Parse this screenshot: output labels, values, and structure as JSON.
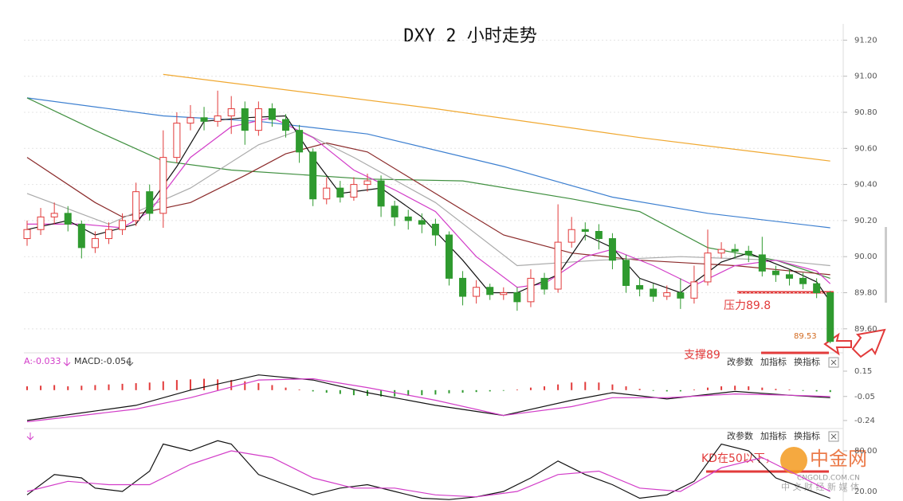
{
  "chart_data": [
    {
      "type": "candlestick",
      "title": "DXY 2 小时走势",
      "up_color": "#e23b3b",
      "down_color": "#2f9a2f",
      "grid": true,
      "ylim": [
        89.48,
        91.29
      ],
      "yticks": [
        {
          "value": 89.6,
          "label": "89.60"
        },
        {
          "value": 89.8,
          "label": "89.80"
        },
        {
          "value": 90.0,
          "label": "90.00"
        },
        {
          "value": 90.2,
          "label": "90.20"
        },
        {
          "value": 90.4,
          "label": "90.40"
        },
        {
          "value": 90.6,
          "label": "90.60"
        },
        {
          "value": 90.8,
          "label": "90.80"
        },
        {
          "value": 91.0,
          "label": "91.00"
        },
        {
          "value": 91.2,
          "label": "91.20"
        }
      ],
      "open": [
        90.1,
        90.15,
        90.22,
        90.24,
        90.18,
        90.05,
        90.1,
        90.15,
        90.2,
        90.36,
        90.24,
        90.55,
        90.74,
        90.77,
        90.75,
        90.78,
        90.82,
        90.7,
        90.82,
        90.76,
        90.7,
        90.58,
        90.32,
        90.38,
        90.33,
        90.4,
        90.42,
        90.28,
        90.22,
        90.2,
        90.18,
        90.12,
        89.88,
        89.78,
        89.83,
        89.79,
        89.8,
        89.75,
        89.88,
        89.82,
        90.08,
        90.15,
        90.14,
        90.1,
        89.98,
        89.84,
        89.82,
        89.78,
        89.8,
        89.77,
        89.86,
        90.02,
        90.04,
        90.03,
        90.01,
        89.92,
        89.9,
        89.88,
        89.85,
        89.8
      ],
      "high": [
        90.2,
        90.27,
        90.3,
        90.28,
        90.2,
        90.14,
        90.19,
        90.24,
        90.41,
        90.4,
        90.7,
        90.8,
        90.84,
        90.83,
        90.92,
        90.89,
        90.86,
        90.86,
        90.85,
        90.79,
        90.73,
        90.6,
        90.44,
        90.42,
        90.44,
        90.46,
        90.45,
        90.31,
        90.26,
        90.24,
        90.21,
        90.14,
        89.92,
        89.87,
        89.85,
        89.83,
        89.83,
        89.93,
        89.91,
        90.29,
        90.22,
        90.19,
        90.18,
        90.13,
        90.01,
        89.88,
        89.85,
        89.84,
        89.88,
        89.95,
        90.15,
        90.08,
        90.07,
        90.06,
        90.11,
        89.95,
        89.93,
        89.91,
        89.88,
        89.81
      ],
      "low": [
        90.06,
        90.12,
        90.18,
        90.14,
        89.99,
        90.02,
        90.07,
        90.12,
        90.17,
        90.2,
        90.16,
        90.52,
        90.7,
        90.7,
        90.72,
        90.68,
        90.62,
        90.67,
        90.72,
        90.66,
        90.52,
        90.28,
        90.29,
        90.3,
        90.31,
        90.36,
        90.22,
        90.17,
        90.15,
        90.13,
        90.06,
        89.84,
        89.73,
        89.74,
        89.76,
        89.76,
        89.7,
        89.72,
        89.79,
        89.8,
        90.05,
        90.09,
        90.04,
        89.93,
        89.8,
        89.78,
        89.75,
        89.76,
        89.71,
        89.74,
        89.84,
        89.99,
        89.99,
        89.97,
        89.89,
        89.86,
        89.84,
        89.82,
        89.77,
        89.52
      ],
      "close": [
        90.15,
        90.22,
        90.24,
        90.18,
        90.05,
        90.1,
        90.15,
        90.2,
        90.36,
        90.24,
        90.55,
        90.74,
        90.77,
        90.75,
        90.78,
        90.82,
        90.7,
        90.82,
        90.76,
        90.7,
        90.58,
        90.32,
        90.38,
        90.33,
        90.4,
        90.42,
        90.28,
        90.22,
        90.2,
        90.18,
        90.12,
        89.88,
        89.78,
        89.83,
        89.79,
        89.8,
        89.75,
        89.88,
        89.82,
        90.08,
        90.15,
        90.14,
        90.1,
        89.98,
        89.84,
        89.82,
        89.78,
        89.8,
        89.77,
        89.86,
        90.02,
        90.04,
        90.03,
        90.01,
        89.92,
        89.9,
        89.88,
        89.85,
        89.8,
        89.53
      ],
      "lines": [
        {
          "color": "#f0a830",
          "x": [
            10,
            30,
            45,
            59
          ],
          "values": [
            91.01,
            90.82,
            90.66,
            90.53
          ]
        },
        {
          "color": "#3c7fd0",
          "x": [
            0,
            10,
            17,
            25,
            35,
            43,
            50,
            59
          ],
          "values": [
            90.88,
            90.78,
            90.75,
            90.68,
            90.5,
            90.33,
            90.24,
            90.16
          ]
        },
        {
          "color": "#3f8f3f",
          "x": [
            0,
            5,
            10,
            15,
            25,
            32,
            40,
            45,
            50,
            55,
            59
          ],
          "values": [
            90.88,
            90.7,
            90.53,
            90.48,
            90.43,
            90.42,
            90.32,
            90.25,
            90.05,
            89.98,
            89.88
          ]
        },
        {
          "color": "#8b2a2a",
          "x": [
            0,
            5,
            7,
            12,
            16,
            19,
            22,
            25,
            30,
            35,
            40,
            45,
            52,
            59
          ],
          "values": [
            90.55,
            90.3,
            90.22,
            90.3,
            90.45,
            90.57,
            90.63,
            90.58,
            90.35,
            90.12,
            90.02,
            89.98,
            89.95,
            89.9
          ]
        },
        {
          "color": "#aaaaaa",
          "x": [
            0,
            6,
            12,
            17,
            20,
            24,
            30,
            36,
            42,
            48,
            55,
            59
          ],
          "values": [
            90.35,
            90.18,
            90.38,
            90.62,
            90.7,
            90.55,
            90.3,
            89.95,
            89.98,
            90.0,
            89.98,
            89.95
          ]
        },
        {
          "color": "#d23cc8",
          "x": [
            0,
            4,
            7,
            9,
            12,
            15,
            18,
            21,
            24,
            27,
            30,
            33,
            36,
            38,
            41,
            43,
            46,
            49,
            52,
            55,
            58,
            59
          ],
          "values": [
            90.18,
            90.18,
            90.16,
            90.25,
            90.55,
            90.72,
            90.77,
            90.66,
            90.48,
            90.37,
            90.25,
            90.0,
            89.83,
            89.85,
            90.0,
            90.04,
            89.95,
            89.84,
            89.95,
            89.98,
            89.92,
            89.85
          ]
        },
        {
          "color": "#111111",
          "x": [
            0,
            3,
            5,
            8,
            11,
            13,
            16,
            19,
            21,
            23,
            26,
            29,
            32,
            34,
            36,
            39,
            41,
            43,
            45,
            48,
            51,
            53,
            56,
            58,
            59
          ],
          "values": [
            90.15,
            90.2,
            90.12,
            90.18,
            90.5,
            90.75,
            90.77,
            90.78,
            90.55,
            90.35,
            90.38,
            90.22,
            89.98,
            89.8,
            89.8,
            89.9,
            90.12,
            90.05,
            89.88,
            89.8,
            89.97,
            90.02,
            89.93,
            89.86,
            89.75
          ]
        }
      ],
      "annotations": [
        "压力89.8",
        "支撑89"
      ]
    },
    {
      "type": "macd",
      "label_dif": "A:-0.033",
      "label_macd": "MACD:-0.054",
      "buttons": [
        "改参数",
        "加指标",
        "换指标"
      ],
      "hist_up_color": "#e23b3b",
      "hist_down_color": "#2f9a2f",
      "ylim": [
        -0.297,
        0.282
      ],
      "yticks": [
        0.15,
        -0.05,
        -0.24
      ],
      "histogram": [
        0.03,
        0.035,
        0.04,
        0.03,
        0.035,
        0.04,
        0.045,
        0.05,
        0.055,
        0.06,
        0.07,
        0.08,
        0.085,
        0.09,
        0.085,
        0.08,
        0.07,
        0.055,
        0.04,
        0.02,
        0.005,
        -0.01,
        -0.02,
        -0.03,
        -0.04,
        -0.045,
        -0.05,
        -0.05,
        -0.045,
        -0.04,
        -0.035,
        -0.025,
        -0.02,
        -0.015,
        -0.01,
        -0.005,
        0.005,
        0.02,
        0.03,
        0.045,
        0.06,
        0.065,
        0.06,
        0.045,
        0.03,
        0.01,
        -0.005,
        -0.01,
        -0.01,
        0.005,
        0.02,
        0.03,
        0.035,
        0.03,
        0.02,
        0.01,
        0.005,
        -0.005,
        -0.01,
        -0.015
      ],
      "lines": [
        {
          "color": "#111111",
          "x": [
            0,
            4,
            8,
            12,
            17,
            21,
            25,
            30,
            35,
            40,
            43,
            47,
            52,
            56,
            59
          ],
          "values": [
            -0.24,
            -0.18,
            -0.12,
            0.0,
            0.12,
            0.08,
            -0.02,
            -0.12,
            -0.2,
            -0.08,
            -0.02,
            -0.07,
            -0.01,
            -0.04,
            -0.06
          ]
        },
        {
          "color": "#d23cc8",
          "x": [
            0,
            4,
            8,
            12,
            17,
            21,
            25,
            30,
            35,
            40,
            43,
            47,
            52,
            56,
            59
          ],
          "values": [
            -0.25,
            -0.2,
            -0.15,
            -0.06,
            0.08,
            0.09,
            0.02,
            -0.08,
            -0.2,
            -0.13,
            -0.06,
            -0.06,
            -0.03,
            -0.04,
            -0.05
          ]
        }
      ]
    },
    {
      "type": "kd",
      "buttons": [
        "改参数",
        "加指标",
        "换指标"
      ],
      "ylim": [
        5.9,
        110.6
      ],
      "yticks": [
        {
          "value": 80,
          "label": "80.00"
        },
        {
          "value": 20,
          "label": "20.00"
        }
      ],
      "annotation": "KD在50以下，",
      "lines": [
        {
          "color": "#111111",
          "x": [
            0,
            2,
            4,
            5,
            7,
            8,
            9,
            10,
            12,
            14,
            15,
            17,
            19,
            21,
            23,
            25,
            27,
            29,
            31,
            33,
            35,
            37,
            39,
            41,
            43,
            45,
            47,
            49,
            51,
            53,
            55,
            57,
            59
          ],
          "values": [
            15,
            45,
            40,
            25,
            20,
            35,
            50,
            90,
            80,
            95,
            90,
            45,
            30,
            15,
            25,
            30,
            20,
            10,
            8,
            12,
            20,
            40,
            65,
            45,
            30,
            10,
            15,
            35,
            90,
            80,
            40,
            25,
            10
          ]
        },
        {
          "color": "#d23cc8",
          "x": [
            0,
            3,
            6,
            9,
            12,
            15,
            18,
            21,
            24,
            27,
            30,
            33,
            36,
            39,
            42,
            45,
            48,
            51,
            54,
            57,
            59
          ],
          "values": [
            20,
            35,
            30,
            30,
            60,
            80,
            70,
            40,
            25,
            25,
            15,
            12,
            20,
            45,
            50,
            25,
            20,
            55,
            70,
            40,
            20
          ]
        }
      ]
    }
  ],
  "watermark": {
    "name": "中金网",
    "domain": "CNGOLD.COM.CN",
    "slogan": "中 文 财 经 新 媒 体"
  }
}
